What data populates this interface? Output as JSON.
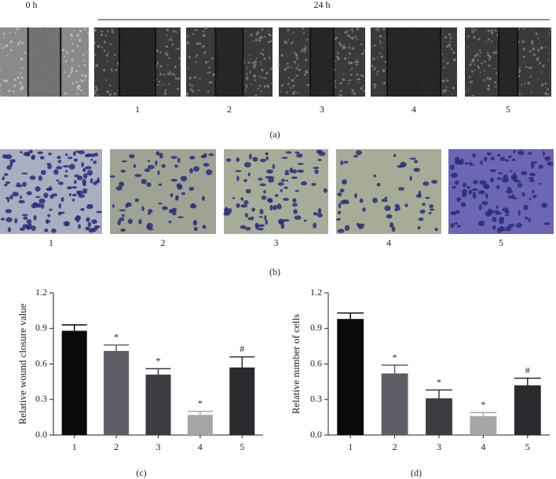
{
  "panel_a": {
    "label_left": "0 h",
    "label_right": "24 h",
    "lanes": [
      "1",
      "2",
      "3",
      "4",
      "5"
    ],
    "caption": "(a)"
  },
  "panel_b": {
    "lanes": [
      "1",
      "2",
      "3",
      "4",
      "5"
    ],
    "caption": "(b)"
  },
  "chart_data": [
    {
      "type": "bar",
      "y_label": "Relative wound closure value",
      "caption": "(c)",
      "categories": [
        "1",
        "2",
        "3",
        "4",
        "5"
      ],
      "values": [
        0.88,
        0.71,
        0.51,
        0.17,
        0.57
      ],
      "errors": [
        0.05,
        0.05,
        0.05,
        0.03,
        0.09
      ],
      "annotations": [
        null,
        "*",
        "*",
        "*",
        "#"
      ],
      "colors": [
        "#0a0a0a",
        "#5d5d66",
        "#3c3c42",
        "#a6a6a6",
        "#2a2a2e"
      ],
      "ylim": [
        0,
        1.2
      ],
      "yticks": [
        {
          "value": 0,
          "label": "0.0"
        },
        0.3,
        0.6,
        0.9,
        1.2
      ]
    },
    {
      "type": "bar",
      "y_label": "Relative number of cells",
      "caption": "(d)",
      "categories": [
        "1",
        "2",
        "3",
        "4",
        "5"
      ],
      "values": [
        0.98,
        0.52,
        0.31,
        0.16,
        0.42
      ],
      "errors": [
        0.05,
        0.07,
        0.07,
        0.03,
        0.06
      ],
      "annotations": [
        null,
        "*",
        "*",
        "*",
        "#"
      ],
      "colors": [
        "#0a0a0a",
        "#5d5d66",
        "#3c3c42",
        "#a6a6a6",
        "#2a2a2e"
      ],
      "ylim": [
        0,
        1.2
      ],
      "yticks": [
        {
          "value": 0,
          "label": "0.0"
        },
        0.3,
        0.6,
        0.9,
        1.2
      ]
    }
  ]
}
